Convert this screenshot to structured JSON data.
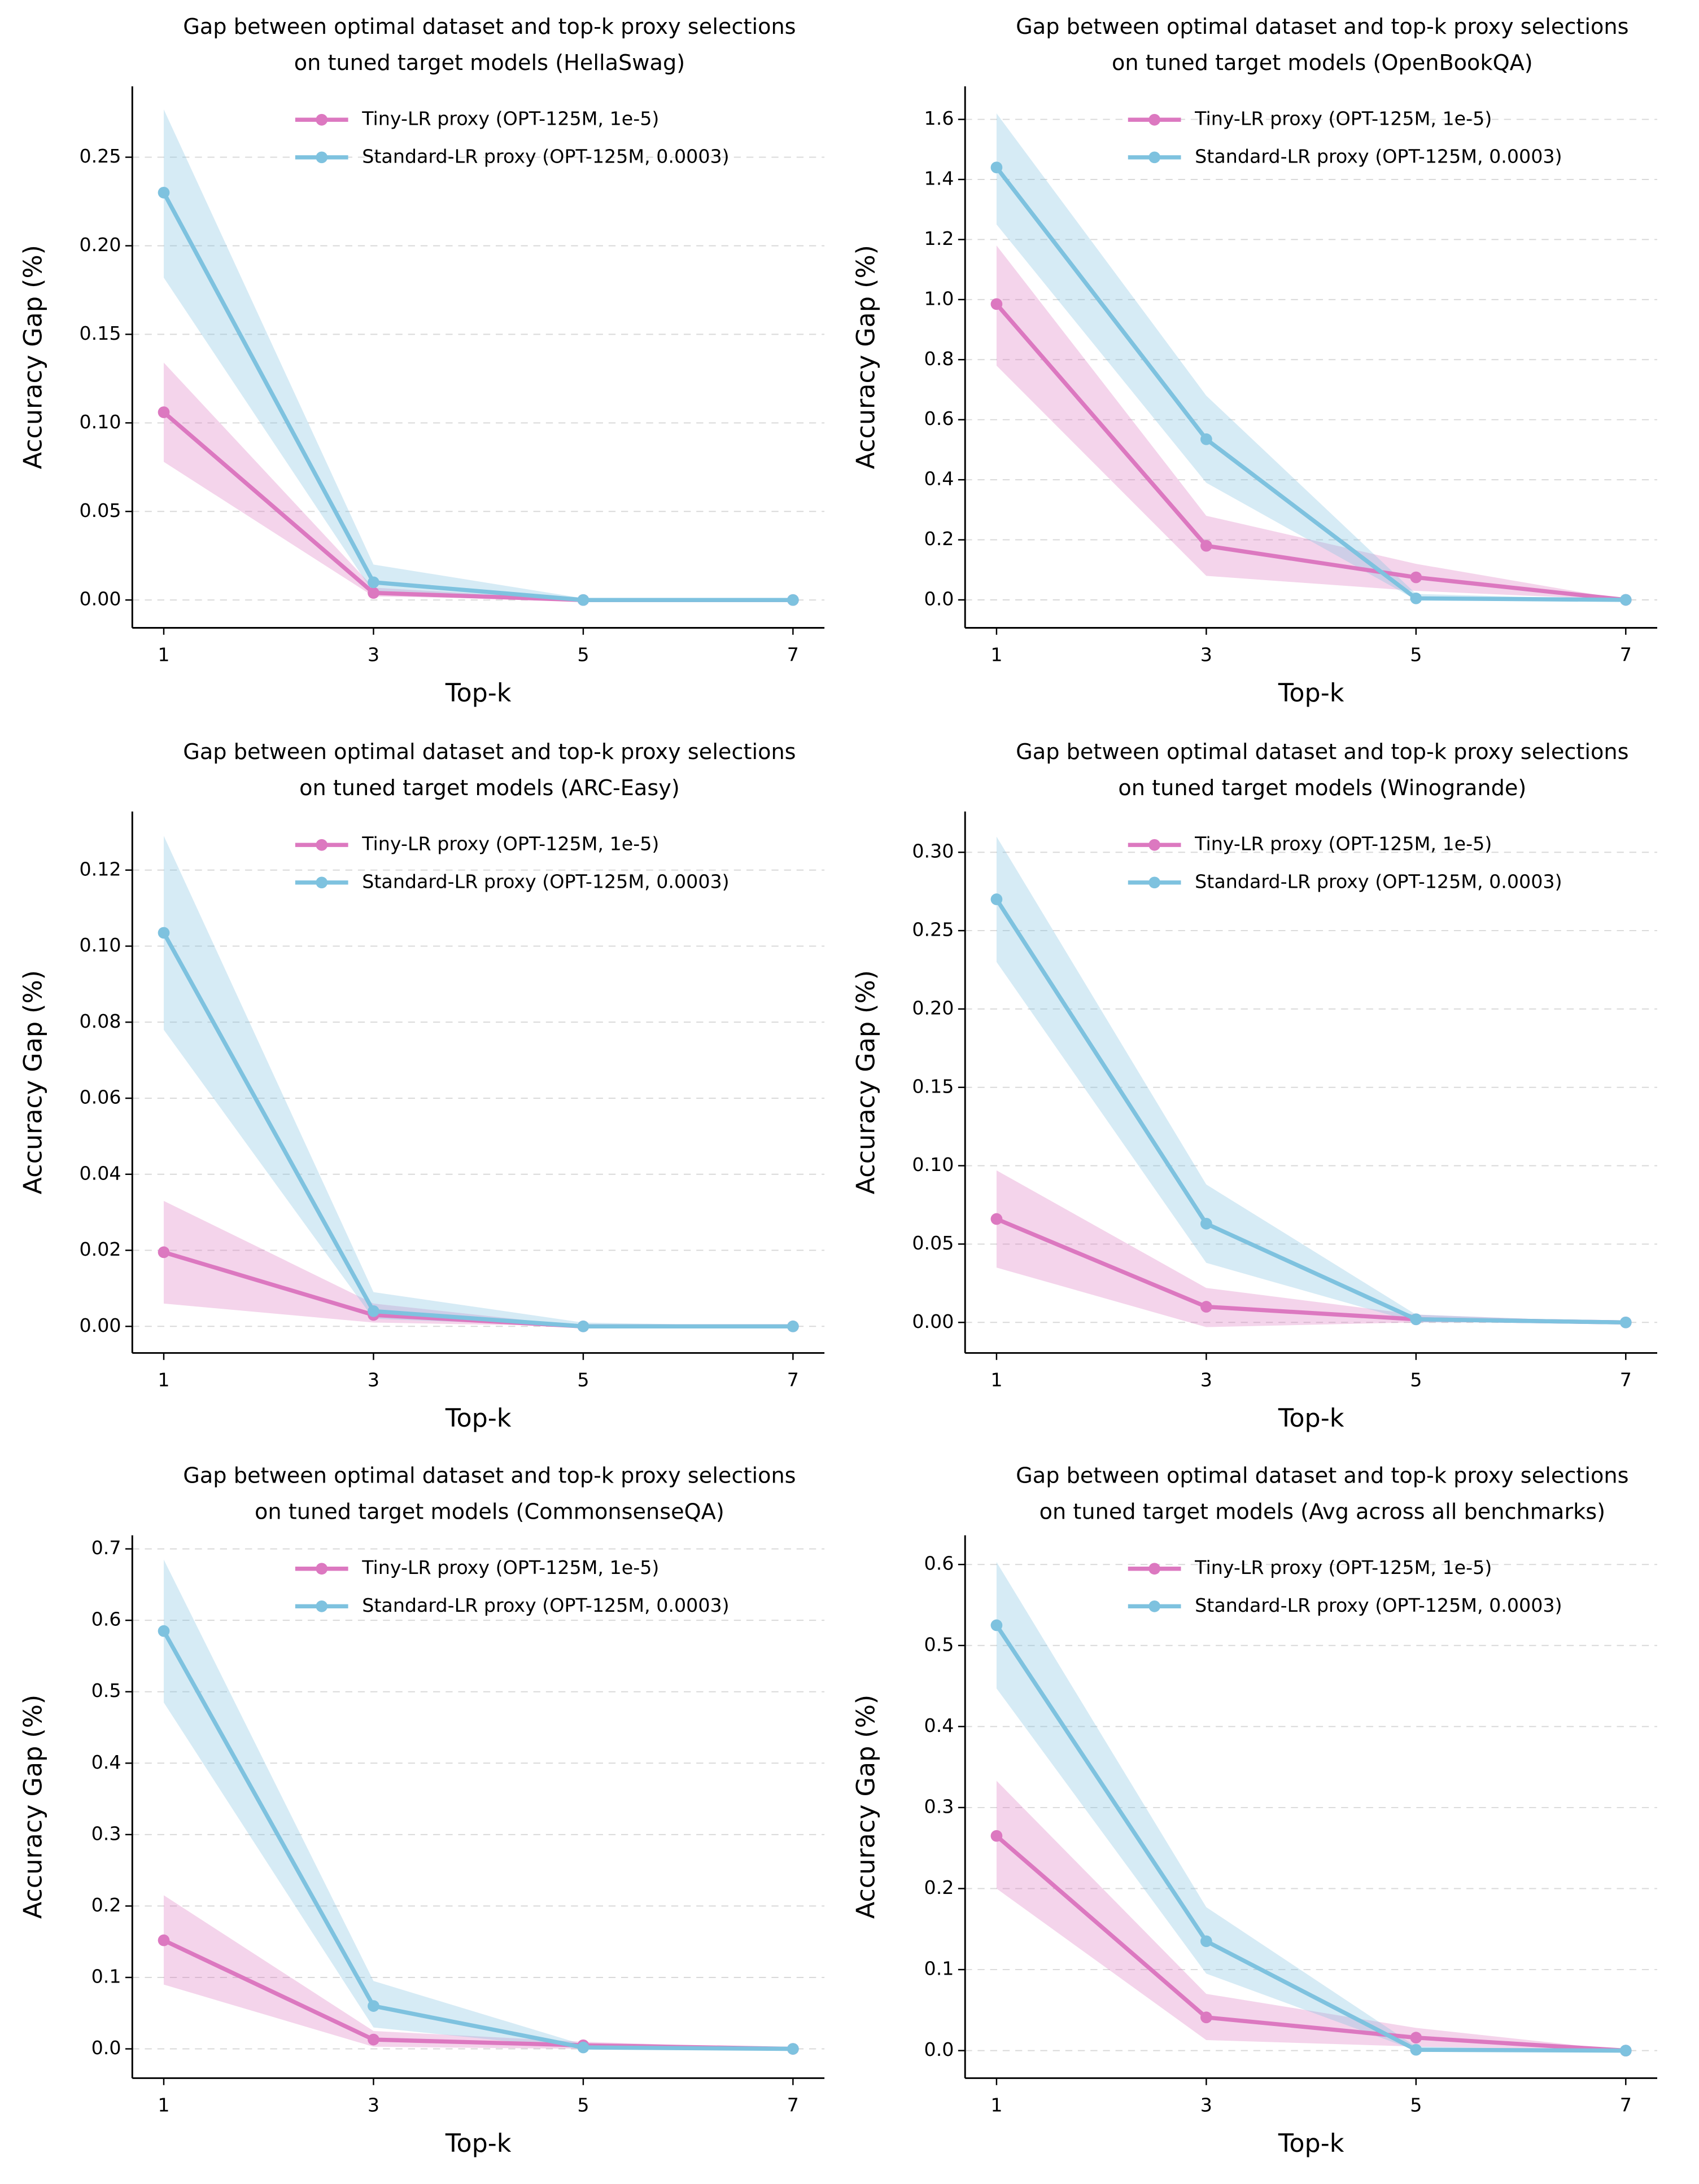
{
  "chart_data": [
    {
      "type": "line",
      "title": [
        "Gap between optimal dataset and top-k proxy selections",
        "on tuned target models (HellaSwag)"
      ],
      "xlabel": "Top-k",
      "ylabel": "Accuracy Gap (%)",
      "x": [
        1,
        3,
        5,
        7
      ],
      "xlim": [
        0.7,
        7.3
      ],
      "xticks": [
        1,
        3,
        5,
        7
      ],
      "ylim": [
        -0.0157,
        0.29
      ],
      "yticks": [
        {
          "value": 0,
          "label": "0.00"
        },
        {
          "value": 0.05,
          "label": "0.05"
        },
        {
          "value": 0.1,
          "label": "0.10"
        },
        {
          "value": 0.15,
          "label": "0.15"
        },
        {
          "value": 0.2,
          "label": "0.20"
        },
        {
          "value": 0.25,
          "label": "0.25"
        }
      ],
      "grid": true,
      "legend": "upper center",
      "series": [
        {
          "name": "Tiny-LR proxy (OPT-125M, 1e-5)",
          "color": "#dc78c0",
          "values": [
            0.106,
            0.004,
            0.0,
            0.0
          ],
          "lower": [
            0.078,
            0.002,
            0.0,
            0.0
          ],
          "upper": [
            0.134,
            0.007,
            0.0,
            0.0
          ]
        },
        {
          "name": "Standard-LR proxy (OPT-125M, 0.0003)",
          "color": "#7ec2df",
          "values": [
            0.23,
            0.01,
            0.0,
            0.0
          ],
          "lower": [
            0.182,
            0.004,
            0.0,
            0.0
          ],
          "upper": [
            0.277,
            0.02,
            0.001,
            0.0
          ]
        }
      ]
    },
    {
      "type": "line",
      "title": [
        "Gap between optimal dataset and top-k proxy selections",
        "on tuned target models (OpenBookQA)"
      ],
      "xlabel": "Top-k",
      "ylabel": "Accuracy Gap (%)",
      "x": [
        1,
        3,
        5,
        7
      ],
      "xlim": [
        0.7,
        7.3
      ],
      "xticks": [
        1,
        3,
        5,
        7
      ],
      "ylim": [
        -0.093,
        1.71
      ],
      "yticks": [
        {
          "value": 0,
          "label": "0.0"
        },
        0.2,
        0.4,
        0.6,
        0.8,
        {
          "value": 1,
          "label": "1.0"
        },
        1.2,
        1.4,
        1.6
      ],
      "grid": true,
      "legend": "upper center",
      "series": [
        {
          "name": "Tiny-LR proxy (OPT-125M, 1e-5)",
          "color": "#dc78c0",
          "values": [
            0.985,
            0.18,
            0.075,
            0.0
          ],
          "lower": [
            0.78,
            0.08,
            0.03,
            0.0
          ],
          "upper": [
            1.18,
            0.28,
            0.12,
            0.0
          ]
        },
        {
          "name": "Standard-LR proxy (OPT-125M, 0.0003)",
          "color": "#7ec2df",
          "values": [
            1.44,
            0.535,
            0.005,
            0.0
          ],
          "lower": [
            1.25,
            0.39,
            0.0,
            0.0
          ],
          "upper": [
            1.62,
            0.68,
            0.02,
            0.0
          ]
        }
      ]
    },
    {
      "type": "line",
      "title": [
        "Gap between optimal dataset and top-k proxy selections",
        "on tuned target models (ARC-Easy)"
      ],
      "xlabel": "Top-k",
      "ylabel": "Accuracy Gap (%)",
      "x": [
        1,
        3,
        5,
        7
      ],
      "xlim": [
        0.7,
        7.3
      ],
      "xticks": [
        1,
        3,
        5,
        7
      ],
      "ylim": [
        -0.007,
        0.1354
      ],
      "yticks": [
        {
          "value": 0,
          "label": "0.00"
        },
        {
          "value": 0.02,
          "label": "0.02"
        },
        {
          "value": 0.04,
          "label": "0.04"
        },
        {
          "value": 0.06,
          "label": "0.06"
        },
        {
          "value": 0.08,
          "label": "0.08"
        },
        {
          "value": 0.1,
          "label": "0.10"
        },
        {
          "value": 0.12,
          "label": "0.12"
        }
      ],
      "grid": true,
      "legend": "upper center",
      "series": [
        {
          "name": "Tiny-LR proxy (OPT-125M, 1e-5)",
          "color": "#dc78c0",
          "values": [
            0.0195,
            0.003,
            0.0,
            0.0
          ],
          "lower": [
            0.006,
            0.001,
            0.0,
            0.0
          ],
          "upper": [
            0.033,
            0.006,
            0.0,
            0.0
          ]
        },
        {
          "name": "Standard-LR proxy (OPT-125M, 0.0003)",
          "color": "#7ec2df",
          "values": [
            0.1035,
            0.004,
            0.0,
            0.0
          ],
          "lower": [
            0.078,
            0.002,
            0.0,
            0.0
          ],
          "upper": [
            0.129,
            0.009,
            0.001,
            0.0
          ]
        }
      ]
    },
    {
      "type": "line",
      "title": [
        "Gap between optimal dataset and top-k proxy selections",
        "on tuned target models (Winogrande)"
      ],
      "xlabel": "Top-k",
      "ylabel": "Accuracy Gap (%)",
      "x": [
        1,
        3,
        5,
        7
      ],
      "xlim": [
        0.7,
        7.3
      ],
      "xticks": [
        1,
        3,
        5,
        7
      ],
      "ylim": [
        -0.0195,
        0.326
      ],
      "yticks": [
        {
          "value": 0,
          "label": "0.00"
        },
        {
          "value": 0.05,
          "label": "0.05"
        },
        {
          "value": 0.1,
          "label": "0.10"
        },
        {
          "value": 0.15,
          "label": "0.15"
        },
        {
          "value": 0.2,
          "label": "0.20"
        },
        {
          "value": 0.25,
          "label": "0.25"
        },
        {
          "value": 0.3,
          "label": "0.30"
        }
      ],
      "grid": true,
      "legend": "upper center",
      "series": [
        {
          "name": "Tiny-LR proxy (OPT-125M, 1e-5)",
          "color": "#dc78c0",
          "values": [
            0.066,
            0.01,
            0.002,
            0.0
          ],
          "lower": [
            0.035,
            -0.003,
            0.0,
            0.0
          ],
          "upper": [
            0.097,
            0.022,
            0.005,
            0.0
          ]
        },
        {
          "name": "Standard-LR proxy (OPT-125M, 0.0003)",
          "color": "#7ec2df",
          "values": [
            0.27,
            0.063,
            0.002,
            0.0
          ],
          "lower": [
            0.23,
            0.038,
            0.0,
            0.0
          ],
          "upper": [
            0.31,
            0.088,
            0.005,
            0.0
          ]
        }
      ]
    },
    {
      "type": "line",
      "title": [
        "Gap between optimal dataset and top-k proxy selections",
        "on tuned target models (CommonsenseQA)"
      ],
      "xlabel": "Top-k",
      "ylabel": "Accuracy Gap (%)",
      "x": [
        1,
        3,
        5,
        7
      ],
      "xlim": [
        0.7,
        7.3
      ],
      "xticks": [
        1,
        3,
        5,
        7
      ],
      "ylim": [
        -0.041,
        0.719
      ],
      "yticks": [
        {
          "value": 0,
          "label": "0.0"
        },
        0.1,
        0.2,
        0.3,
        0.4,
        0.5,
        0.6,
        0.7
      ],
      "grid": true,
      "legend": "upper center",
      "series": [
        {
          "name": "Tiny-LR proxy (OPT-125M, 1e-5)",
          "color": "#dc78c0",
          "values": [
            0.152,
            0.013,
            0.005,
            0.0
          ],
          "lower": [
            0.09,
            0.003,
            0.0,
            0.0
          ],
          "upper": [
            0.215,
            0.025,
            0.01,
            0.0
          ]
        },
        {
          "name": "Standard-LR proxy (OPT-125M, 0.0003)",
          "color": "#7ec2df",
          "values": [
            0.585,
            0.06,
            0.002,
            0.0
          ],
          "lower": [
            0.485,
            0.03,
            0.0,
            0.0
          ],
          "upper": [
            0.685,
            0.095,
            0.006,
            0.0
          ]
        }
      ]
    },
    {
      "type": "line",
      "title": [
        "Gap between optimal dataset and top-k proxy selections",
        "on tuned target models (Avg across all benchmarks)"
      ],
      "xlabel": "Top-k",
      "ylabel": "Accuracy Gap (%)",
      "x": [
        1,
        3,
        5,
        7
      ],
      "xlim": [
        0.7,
        7.3
      ],
      "xticks": [
        1,
        3,
        5,
        7
      ],
      "ylim": [
        -0.034,
        0.636
      ],
      "yticks": [
        {
          "value": 0,
          "label": "0.0"
        },
        0.1,
        0.2,
        0.3,
        0.4,
        0.5,
        0.6
      ],
      "grid": true,
      "legend": "upper center",
      "series": [
        {
          "name": "Tiny-LR proxy (OPT-125M, 1e-5)",
          "color": "#dc78c0",
          "values": [
            0.265,
            0.041,
            0.016,
            0.0
          ],
          "lower": [
            0.2,
            0.013,
            0.005,
            0.0
          ],
          "upper": [
            0.333,
            0.07,
            0.028,
            0.0
          ]
        },
        {
          "name": "Standard-LR proxy (OPT-125M, 0.0003)",
          "color": "#7ec2df",
          "values": [
            0.525,
            0.135,
            0.001,
            0.0
          ],
          "lower": [
            0.447,
            0.095,
            0.0,
            0.0
          ],
          "upper": [
            0.603,
            0.177,
            0.005,
            0.0
          ]
        }
      ]
    }
  ]
}
